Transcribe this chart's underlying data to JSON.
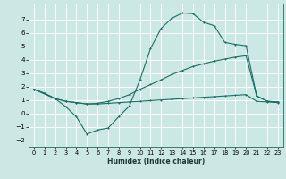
{
  "bg_color": "#cce8e4",
  "grid_color": "#ffffff",
  "line_color": "#1a6e64",
  "xlabel": "Humidex (Indice chaleur)",
  "xlim": [
    -0.5,
    23.5
  ],
  "ylim": [
    -2.5,
    8.2
  ],
  "xticks": [
    0,
    1,
    2,
    3,
    4,
    5,
    6,
    7,
    8,
    9,
    10,
    11,
    12,
    13,
    14,
    15,
    16,
    17,
    18,
    19,
    20,
    21,
    22,
    23
  ],
  "yticks": [
    -2,
    -1,
    0,
    1,
    2,
    3,
    4,
    5,
    6,
    7
  ],
  "line1_x": [
    0,
    1,
    2,
    3,
    4,
    5,
    6,
    7,
    8,
    9,
    10,
    11,
    12,
    13,
    14,
    15,
    16,
    17,
    18,
    19,
    20,
    21,
    22,
    23
  ],
  "line1_y": [
    1.8,
    1.5,
    1.1,
    0.9,
    0.8,
    0.7,
    0.7,
    0.75,
    0.8,
    0.85,
    0.9,
    0.95,
    1.0,
    1.05,
    1.1,
    1.15,
    1.2,
    1.25,
    1.3,
    1.35,
    1.4,
    0.9,
    0.85,
    0.8
  ],
  "line2_x": [
    0,
    2,
    3,
    4,
    5,
    6,
    7,
    8,
    9,
    10,
    11,
    12,
    13,
    14,
    15,
    16,
    17,
    18,
    19,
    20,
    21,
    22,
    23
  ],
  "line2_y": [
    1.8,
    1.1,
    0.9,
    0.8,
    0.7,
    0.75,
    0.9,
    1.1,
    1.4,
    1.8,
    2.15,
    2.5,
    2.9,
    3.2,
    3.5,
    3.7,
    3.9,
    4.05,
    4.2,
    4.3,
    1.3,
    0.9,
    0.85
  ],
  "line3_x": [
    0,
    1,
    2,
    3,
    4,
    5,
    6,
    7,
    8,
    9,
    10,
    11,
    12,
    13,
    14,
    15,
    16,
    17,
    18,
    19,
    20,
    21,
    22,
    23
  ],
  "line3_y": [
    1.8,
    1.5,
    1.1,
    0.5,
    -0.25,
    -1.55,
    -1.25,
    -1.1,
    -0.25,
    0.55,
    2.5,
    4.85,
    6.35,
    7.1,
    7.5,
    7.45,
    6.8,
    6.55,
    5.3,
    5.15,
    5.05,
    1.3,
    0.9,
    0.85
  ]
}
